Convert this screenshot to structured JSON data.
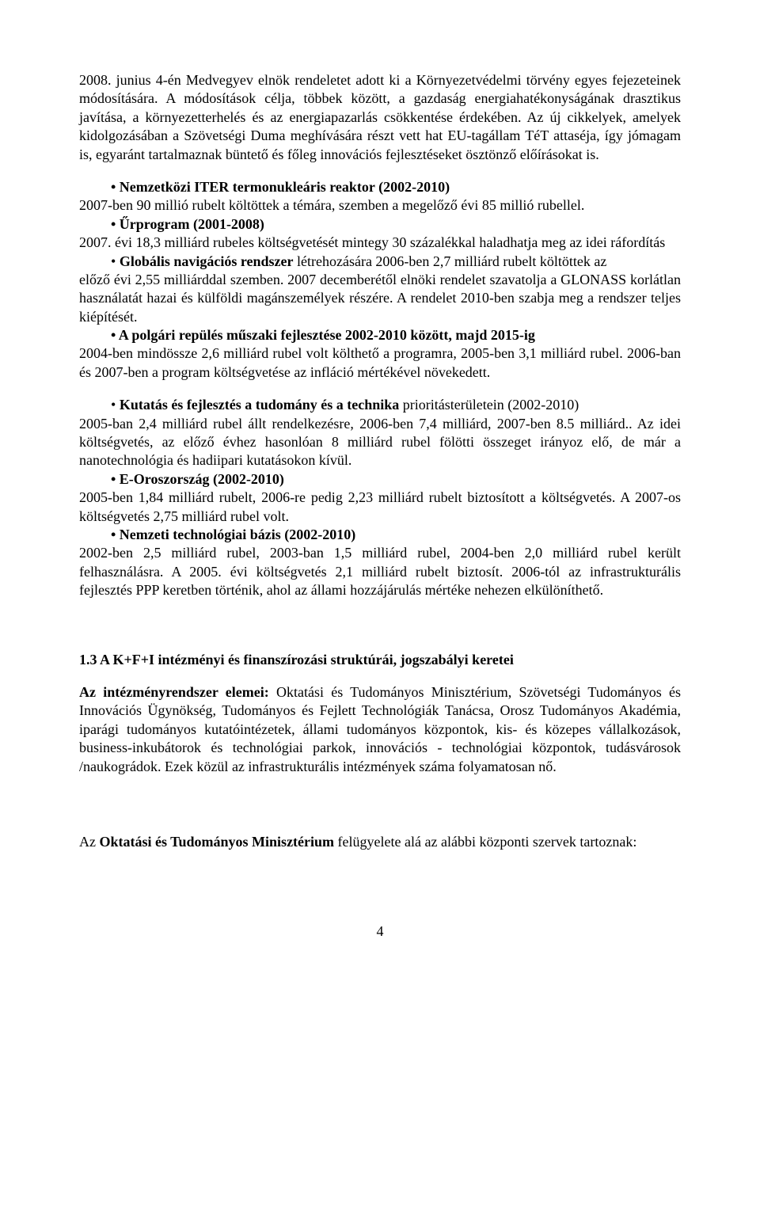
{
  "para1": "2008. junius 4-én Medvegyev elnök rendeletet adott ki a Környezetvédelmi törvény egyes fejezeteinek módosítására. A módosítások célja, többek között, a gazdaság energiahatékonyságának drasztikus javítása, a környezetterhelés és az energiapazarlás csökkentése érdekében. Az új cikkelyek, amelyek kidolgozásában a Szövetségi Duma meghívására részt vett hat EU-tagállam TéT attaséja, így jómagam is, egyaránt tartalmaznak büntető és főleg innovációs fejlesztéseket ösztönző előírásokat is.",
  "b1_label": "•   Nemzetközi ITER termonukleáris reaktor (2002-2010)",
  "b1_text": "2007-ben 90 millió rubelt költöttek a témára, szemben a megelőző évi 85 millió rubellel.",
  "b2_label": "•   Űrprogram (2001-2008)",
  "b2_text": "2007. évi 18,3 milliárd rubeles költségvetését mintegy 30 százalékkal haladhatja meg az idei ráfordítás",
  "b3_line1_pre": "•   ",
  "b3_line1_bold": "Globális navigációs rendszer",
  "b3_line1_rest": " létrehozására 2006-ben 2,7 milliárd rubelt költöttek az",
  "b3_text_rest": "előző évi 2,55 milliárddal szemben. 2007 decemberétől elnöki rendelet szavatolja a GLONASS korlátlan használatát hazai és külföldi magánszemélyek részére. A rendelet 2010-ben szabja meg a rendszer teljes kiépítését.",
  "b4_label": "•   A polgári repülés műszaki fejlesztése 2002-2010 között, majd 2015-ig",
  "b4_text": " 2004-ben mindössze 2,6 milliárd rubel volt költhető a programra, 2005-ben 3,1 milliárd rubel. 2006-ban és 2007-ben a program költségvetése az infláció mértékével növekedett.",
  "b5_line1_pre": "•   ",
  "b5_line1_bold": "Kutatás és fejlesztés a tudomány és a technika",
  "b5_line1_rest": " prioritásterületein (2002-2010)",
  "b5_text": "2005-ban 2,4 milliárd rubel állt rendelkezésre, 2006-ben 7,4 milliárd, 2007-ben 8.5 milliárd.. Az idei költségvetés, az előző évhez hasonlóan 8 milliárd rubel fölötti összeget irányoz elő, de már a nanotechnológia és hadiipari kutatásokon kívül.",
  "b6_label": "•   E-Oroszország (2002-2010)",
  "b6_text": "2005-ben 1,84 milliárd rubelt, 2006-re pedig 2,23 milliárd rubelt biztosított a költségvetés. A 2007-os költségvetés 2,75 milliárd rubel volt.",
  "b7_label": "•   Nemzeti technológiai bázis (2002-2010)",
  "b7_text": "2002-ben 2,5 milliárd rubel, 2003-ban 1,5 milliárd rubel, 2004-ben 2,0 milliárd rubel került felhasználásra. A 2005. évi költségvetés 2,1 milliárd rubelt biztosít. 2006-tól az infrastrukturális fejlesztés PPP keretben történik, ahol az állami hozzájárulás mértéke nehezen elkülöníthető.",
  "section_1_3": "1.3  A K+F+I intézményi és finanszírozási struktúrái, jogszabályi keretei",
  "para_inst_bold": "Az intézményrendszer elemei:",
  "para_inst_rest": " Oktatási és Tudományos Minisztérium, Szövetségi Tudományos és Innovációs Ügynökség, Tudományos és Fejlett Technológiák Tanácsa, Orosz Tudományos Akadémia, iparági tudományos kutatóintézetek, állami tudományos központok, kis- és közepes vállalkozások, business-inkubátorok és technológiai parkok, innovációs - technológiai központok, tudásvárosok /naukográdok. Ezek közül az infrastrukturális intézmények száma folyamatosan nő.",
  "para_last_pre": "Az ",
  "para_last_bold": "Oktatási és Tudományos Minisztérium",
  "para_last_rest": " felügyelete alá az alábbi központi szervek tartoznak:",
  "page_number": "4"
}
